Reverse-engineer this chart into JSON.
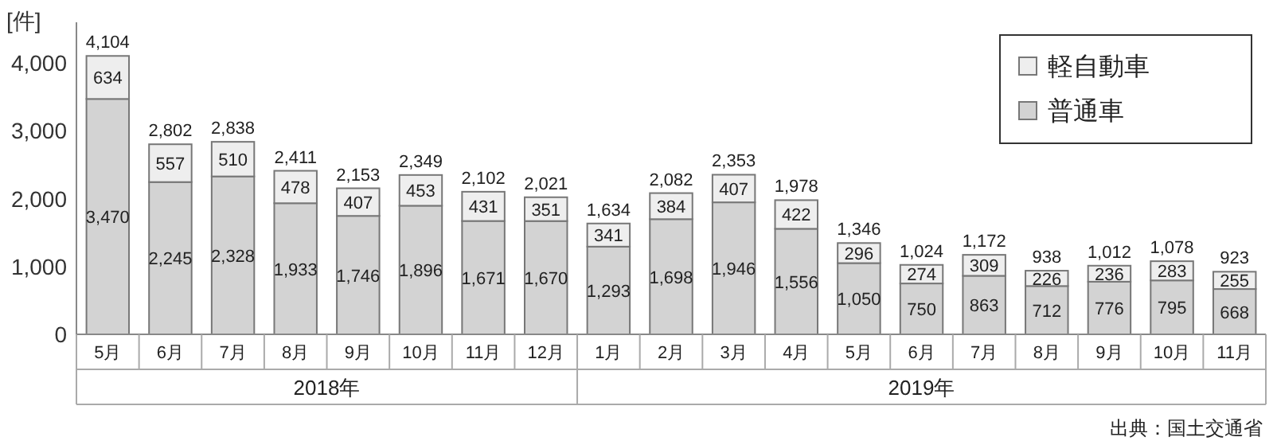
{
  "chart_data": {
    "type": "bar",
    "stacked": true,
    "ylabel": "[件]",
    "categories": [
      "5月",
      "6月",
      "7月",
      "8月",
      "9月",
      "10月",
      "11月",
      "12月",
      "1月",
      "2月",
      "3月",
      "4月",
      "5月",
      "6月",
      "7月",
      "8月",
      "9月",
      "10月",
      "11月"
    ],
    "series": [
      {
        "name": "普通車",
        "color": "#d3d3d3",
        "values": [
          3470,
          2245,
          2328,
          1933,
          1746,
          1896,
          1671,
          1670,
          1293,
          1698,
          1946,
          1556,
          1050,
          750,
          863,
          712,
          776,
          795,
          668
        ],
        "value_labels": [
          "3,470",
          "2,245",
          "2,328",
          "1,933",
          "1,746",
          "1,896",
          "1,671",
          "1,670",
          "1,293",
          "1,698",
          "1,946",
          "1,556",
          "1,050",
          "750",
          "863",
          "712",
          "776",
          "795",
          "668"
        ]
      },
      {
        "name": "軽自動車",
        "color": "#eeeeee",
        "values": [
          634,
          557,
          510,
          478,
          407,
          453,
          431,
          351,
          341,
          384,
          407,
          422,
          296,
          274,
          309,
          226,
          236,
          283,
          255
        ],
        "value_labels": [
          "634",
          "557",
          "510",
          "478",
          "407",
          "453",
          "431",
          "351",
          "341",
          "384",
          "407",
          "422",
          "296",
          "274",
          "309",
          "226",
          "236",
          "283",
          "255"
        ]
      }
    ],
    "totals": [
      "4,104",
      "2,802",
      "2,838",
      "2,411",
      "2,153",
      "2,349",
      "2,102",
      "2,021",
      "1,634",
      "2,082",
      "2,353",
      "1,978",
      "1,346",
      "1,024",
      "1,172",
      "938",
      "1,012",
      "1,078",
      "923"
    ],
    "ylim": [
      0,
      4600
    ],
    "yticks": [
      {
        "value": 0,
        "label": "0"
      },
      {
        "value": 1000,
        "label": "1,000"
      },
      {
        "value": 2000,
        "label": "2,000"
      },
      {
        "value": 3000,
        "label": "3,000"
      },
      {
        "value": 4000,
        "label": "4,000"
      }
    ],
    "legend": "top right",
    "grid": false,
    "annotations": [
      "2018年",
      "2019年",
      "出典：国土交通省"
    ]
  }
}
